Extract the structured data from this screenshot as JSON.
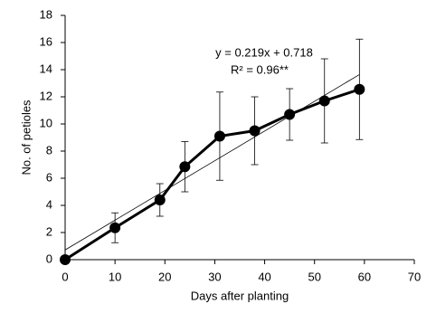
{
  "chart_data": {
    "type": "line",
    "x_label": "Days after planting",
    "y_label": "No. of petioles",
    "x": [
      0,
      10,
      19,
      24,
      31,
      38,
      45,
      52,
      59
    ],
    "values": [
      0,
      2.35,
      4.4,
      6.85,
      9.1,
      9.5,
      10.7,
      11.7,
      12.55
    ],
    "errors": [
      0,
      1.1,
      1.2,
      1.85,
      3.25,
      2.5,
      1.9,
      3.1,
      3.7
    ],
    "color": "#000000",
    "xlim": [
      0,
      70
    ],
    "xticks": [
      0,
      10,
      20,
      30,
      40,
      50,
      60,
      70
    ],
    "ylim": [
      0,
      18
    ],
    "yticks": [
      0,
      2,
      4,
      6,
      8,
      10,
      12,
      14,
      16,
      18
    ],
    "grid": false,
    "trendline": {
      "slope": 0.219,
      "intercept": 0.718,
      "equation": "y = 0.219x + 0.718",
      "r2_label": "R² = 0.96**"
    }
  }
}
